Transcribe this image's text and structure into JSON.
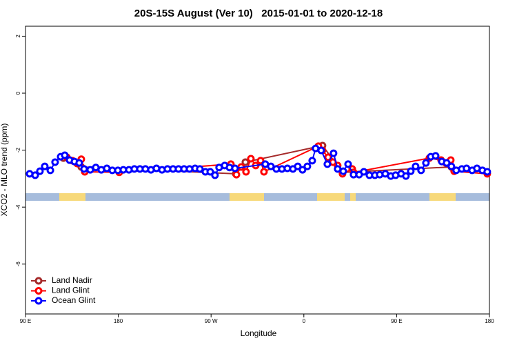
{
  "chart_data": {
    "type": "line",
    "title": "20S-15S August (Ver 10)   2015-01-01 to 2020-12-18",
    "x_label": "Longitude",
    "y_label": "XCO2 - MLO trend (ppm)",
    "xlim": [
      90,
      540
    ],
    "xticks": [
      {
        "value": 90,
        "label": "90 E"
      },
      {
        "value": 180,
        "label": "180"
      },
      {
        "value": 270,
        "label": "90 W"
      },
      {
        "value": 360,
        "label": "0"
      },
      {
        "value": 450,
        "label": "90 E"
      },
      {
        "value": 540,
        "label": "180"
      }
    ],
    "ylim": [
      -7.75,
      2.35
    ],
    "yticks": [
      2,
      0,
      -2,
      -4,
      -6
    ],
    "legend": "bottom-left",
    "series": [
      {
        "name": "Land Nadir",
        "color": "#a52a2a",
        "x": [
          126.8,
          144.1,
          293.9,
          303.3,
          378.1,
          397.5,
          503.1
        ],
        "values": [
          -2.28,
          -2.59,
          -2.83,
          -2.42,
          -1.84,
          -2.78,
          -2.59
        ]
      },
      {
        "name": "Land Glint",
        "color": "#ff0000",
        "x": [
          130.1,
          135.5,
          140.1,
          144.1,
          147.5,
          180.9,
          289.2,
          294.6,
          299.2,
          303.9,
          308.6,
          313.3,
          318.0,
          321.3,
          374.1,
          378.1,
          383.5,
          388.2,
          392.8,
          397.5,
          406.9,
          408.2,
          481.7,
          493.1,
          497.8,
          502.5,
          505.8,
          537.9
        ],
        "values": [
          -2.25,
          -2.37,
          -2.47,
          -2.32,
          -2.76,
          -2.78,
          -2.49,
          -2.86,
          -2.59,
          -2.76,
          -2.3,
          -2.54,
          -2.37,
          -2.76,
          -1.86,
          -2.01,
          -2.25,
          -2.42,
          -2.54,
          -2.83,
          -2.66,
          -2.78,
          -2.28,
          -2.35,
          -2.45,
          -2.35,
          -2.74,
          -2.83
        ]
      },
      {
        "name": "Ocean Glint",
        "color": "#0000ff",
        "x": [
          94.0,
          99.4,
          104.0,
          108.7,
          114.1,
          118.7,
          124.1,
          128.1,
          132.8,
          137.5,
          142.1,
          146.8,
          152.8,
          158.2,
          163.5,
          168.9,
          174.2,
          179.6,
          184.9,
          190.3,
          195.6,
          201.0,
          206.3,
          211.7,
          217.0,
          222.4,
          227.7,
          233.1,
          238.4,
          243.8,
          249.1,
          254.5,
          259.1,
          264.5,
          269.2,
          273.8,
          277.8,
          283.2,
          287.9,
          293.2,
          322.6,
          328.0,
          333.3,
          338.7,
          344.0,
          349.4,
          354.1,
          358.7,
          363.4,
          368.1,
          371.4,
          376.8,
          382.8,
          388.8,
          392.8,
          398.2,
          402.9,
          408.2,
          413.6,
          418.2,
          423.6,
          428.9,
          433.6,
          439.0,
          444.3,
          449.0,
          454.3,
          459.0,
          463.7,
          468.4,
          473.7,
          478.4,
          483.1,
          487.8,
          493.8,
          498.5,
          503.1,
          507.8,
          513.2,
          517.8,
          523.2,
          527.9,
          533.2,
          537.9
        ],
        "values": [
          -2.83,
          -2.88,
          -2.74,
          -2.57,
          -2.71,
          -2.42,
          -2.23,
          -2.18,
          -2.35,
          -2.4,
          -2.45,
          -2.66,
          -2.69,
          -2.61,
          -2.69,
          -2.64,
          -2.71,
          -2.71,
          -2.69,
          -2.69,
          -2.66,
          -2.66,
          -2.66,
          -2.69,
          -2.64,
          -2.69,
          -2.66,
          -2.66,
          -2.66,
          -2.66,
          -2.66,
          -2.64,
          -2.66,
          -2.76,
          -2.76,
          -2.88,
          -2.61,
          -2.54,
          -2.61,
          -2.64,
          -2.49,
          -2.57,
          -2.66,
          -2.66,
          -2.64,
          -2.66,
          -2.57,
          -2.69,
          -2.57,
          -2.37,
          -1.94,
          -2.01,
          -2.49,
          -2.11,
          -2.66,
          -2.74,
          -2.49,
          -2.86,
          -2.86,
          -2.76,
          -2.88,
          -2.88,
          -2.86,
          -2.83,
          -2.91,
          -2.88,
          -2.83,
          -2.91,
          -2.74,
          -2.57,
          -2.71,
          -2.45,
          -2.23,
          -2.2,
          -2.4,
          -2.45,
          -2.57,
          -2.71,
          -2.66,
          -2.64,
          -2.71,
          -2.64,
          -2.71,
          -2.76
        ]
      }
    ]
  }
}
